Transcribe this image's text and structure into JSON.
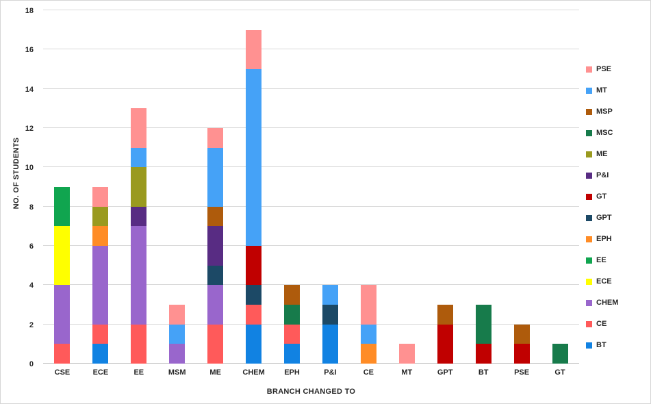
{
  "chart_data": {
    "type": "bar",
    "subtype": "stacked-vertical",
    "title": "",
    "xlabel": "BRANCH CHANGED TO",
    "ylabel": "NO. OF STUDENTS",
    "ylim": [
      0,
      18
    ],
    "yticks": [
      0,
      2,
      4,
      6,
      8,
      10,
      12,
      14,
      16,
      18
    ],
    "grid": true,
    "legend_position": "right",
    "categories": [
      "CSE",
      "ECE",
      "EE",
      "MSM",
      "ME",
      "CHEM",
      "EPH",
      "P&I",
      "CE",
      "MT",
      "GPT",
      "BT",
      "PSE",
      "GT"
    ],
    "stack_order": [
      "BT",
      "CE",
      "CHEM",
      "ECE",
      "EE",
      "EPH",
      "GPT",
      "GT",
      "P&I",
      "ME",
      "MSC",
      "MSP",
      "MT",
      "PSE"
    ],
    "legend_order": [
      "PSE",
      "MT",
      "MSP",
      "MSC",
      "ME",
      "P&I",
      "GT",
      "GPT",
      "EPH",
      "EE",
      "ECE",
      "CHEM",
      "CE",
      "BT"
    ],
    "series": [
      {
        "name": "BT",
        "color": "#1182e2",
        "values": [
          0,
          1,
          0,
          0,
          0,
          2,
          1,
          2,
          0,
          0,
          0,
          0,
          0,
          0
        ]
      },
      {
        "name": "CE",
        "color": "#ff5a5a",
        "values": [
          1,
          1,
          2,
          0,
          2,
          1,
          1,
          0,
          0,
          0,
          0,
          0,
          0,
          0
        ]
      },
      {
        "name": "CHEM",
        "color": "#9966cc",
        "values": [
          3,
          4,
          5,
          1,
          2,
          0,
          0,
          0,
          0,
          0,
          0,
          0,
          0,
          0
        ]
      },
      {
        "name": "ECE",
        "color": "#ffff00",
        "values": [
          3,
          0,
          0,
          0,
          0,
          0,
          0,
          0,
          0,
          0,
          0,
          0,
          0,
          0
        ]
      },
      {
        "name": "EE",
        "color": "#10a54f",
        "values": [
          2,
          0,
          0,
          0,
          0,
          0,
          0,
          0,
          0,
          0,
          0,
          0,
          0,
          0
        ]
      },
      {
        "name": "EPH",
        "color": "#ff8c26",
        "values": [
          0,
          1,
          0,
          0,
          0,
          0,
          0,
          0,
          1,
          0,
          0,
          0,
          0,
          0
        ]
      },
      {
        "name": "GPT",
        "color": "#1c4966",
        "values": [
          0,
          0,
          0,
          0,
          1,
          1,
          0,
          1,
          0,
          0,
          0,
          0,
          0,
          0
        ]
      },
      {
        "name": "GT",
        "color": "#c00000",
        "values": [
          0,
          0,
          0,
          0,
          0,
          2,
          0,
          0,
          0,
          0,
          2,
          1,
          1,
          0
        ]
      },
      {
        "name": "P&I",
        "color": "#582c83",
        "values": [
          0,
          0,
          1,
          0,
          2,
          0,
          0,
          0,
          0,
          0,
          0,
          0,
          0,
          0
        ]
      },
      {
        "name": "ME",
        "color": "#9a9a1f",
        "values": [
          0,
          1,
          2,
          0,
          0,
          0,
          0,
          0,
          0,
          0,
          0,
          0,
          0,
          0
        ]
      },
      {
        "name": "MSC",
        "color": "#177b4b",
        "values": [
          0,
          0,
          0,
          0,
          0,
          0,
          1,
          0,
          0,
          0,
          0,
          2,
          0,
          1
        ]
      },
      {
        "name": "MSP",
        "color": "#ae5b0c",
        "values": [
          0,
          0,
          0,
          0,
          1,
          0,
          1,
          0,
          0,
          0,
          1,
          0,
          1,
          0
        ]
      },
      {
        "name": "MT",
        "color": "#45a2f7",
        "values": [
          0,
          0,
          1,
          1,
          3,
          9,
          0,
          1,
          1,
          0,
          0,
          0,
          0,
          0
        ]
      },
      {
        "name": "PSE",
        "color": "#ff9191",
        "values": [
          0,
          1,
          2,
          1,
          1,
          2,
          0,
          0,
          2,
          1,
          0,
          0,
          0,
          0
        ]
      }
    ]
  }
}
